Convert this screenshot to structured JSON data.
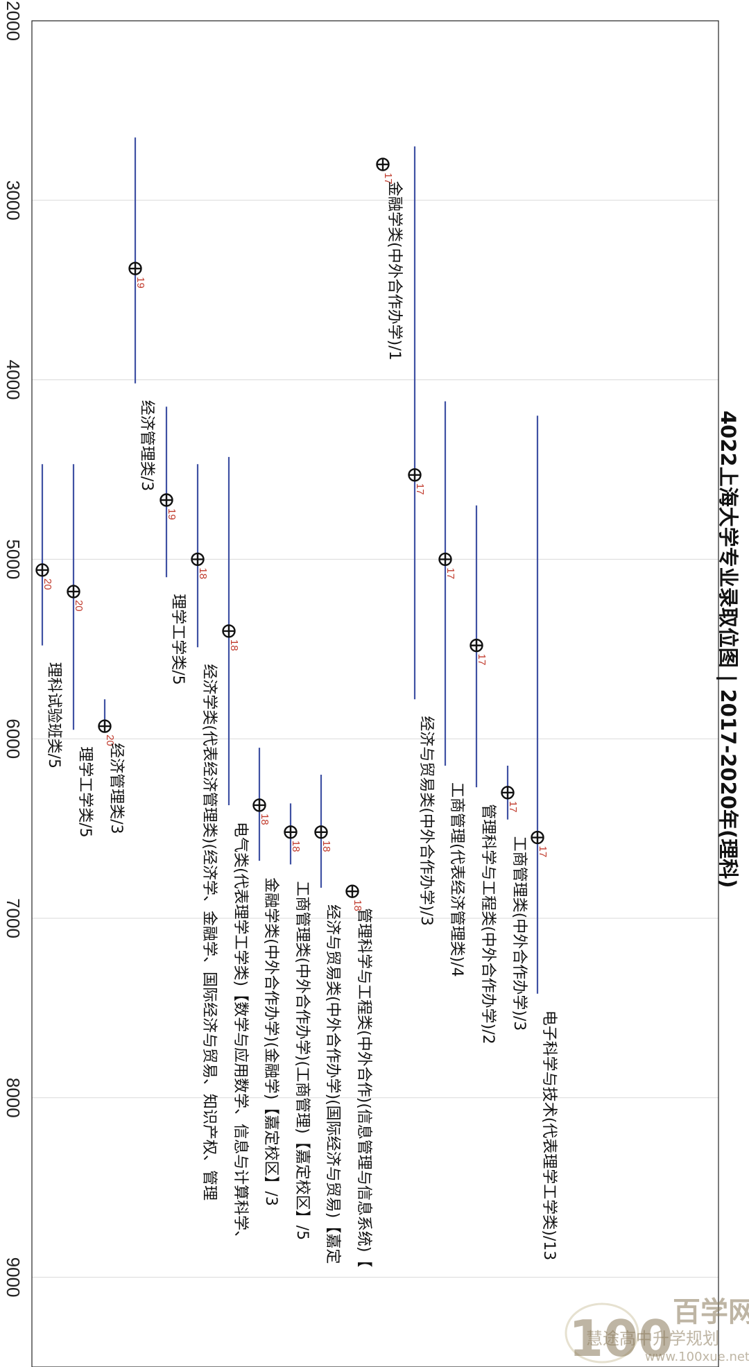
{
  "chart_data": {
    "type": "scatter",
    "title": "4022上海大学专业录取位图 | 2017-2020年(理科)",
    "xlim": [
      2000,
      9500
    ],
    "x_ticks": [
      2000,
      3000,
      4000,
      5000,
      6000,
      7000,
      8000,
      9000
    ],
    "grid": true,
    "points": [
      {
        "label": "电子科学与技术(代表理学工学类)/13",
        "min": 4200,
        "max": 7420,
        "value": 6550,
        "year": "17"
      },
      {
        "label": "工商管理类(中外合作办学)/3",
        "min": 6150,
        "max": 6450,
        "value": 6300,
        "year": "17"
      },
      {
        "label": "管理科学与工程类(中外合作办学)/2",
        "min": 4700,
        "max": 6270,
        "value": 5480,
        "year": "17"
      },
      {
        "label": "工商管理(代表经济管理类)/4",
        "min": 4120,
        "max": 6150,
        "value": 5000,
        "year": "17"
      },
      {
        "label": "经济与贸易类(中外合作办学)/3",
        "min": 2700,
        "max": 5780,
        "value": 4530,
        "year": "17"
      },
      {
        "label": "金融学类(中外合作办学)/1",
        "min": 2800,
        "max": 2800,
        "value": 2800,
        "year": "17"
      },
      {
        "label": "管理科学与工程类(中外合作)(信息管理与信息系统)【",
        "min": 6850,
        "max": 6850,
        "value": 6850,
        "year": "18"
      },
      {
        "label": "经济与贸易类(中外合作办学)(国际经济与贸易)【嘉定",
        "min": 6200,
        "max": 6830,
        "value": 6520,
        "year": "18"
      },
      {
        "label": "工商管理类(中外合作办学)(工商管理)【嘉定校区】/5",
        "min": 6360,
        "max": 6700,
        "value": 6520,
        "year": "18"
      },
      {
        "label": "金融学类(中外合作办学)(金融学)【嘉定校区】/3",
        "min": 6050,
        "max": 6680,
        "value": 6370,
        "year": "18"
      },
      {
        "label": "电气类(代表理学工学类)【数学与应用数学、信息与计算科学、",
        "min": 4430,
        "max": 6370,
        "value": 5400,
        "year": "18"
      },
      {
        "label": "经济学类(代表经济管理类)(经济学、金融学、国际经济与贸易、知识产权、管理",
        "min": 4470,
        "max": 5490,
        "value": 5000,
        "year": "18"
      },
      {
        "label": "理学工学类/5",
        "min": 4150,
        "max": 5100,
        "value": 4670,
        "year": "19"
      },
      {
        "label": "经济管理类/3",
        "min": 2650,
        "max": 4020,
        "value": 3380,
        "year": "19"
      },
      {
        "label": "经济管理类/3",
        "min": 5780,
        "max": 5930,
        "value": 5930,
        "year": "20"
      },
      {
        "label": "理学工学类/5",
        "min": 4470,
        "max": 5950,
        "value": 5180,
        "year": "20"
      },
      {
        "label": "理科试验班类/5",
        "min": 4470,
        "max": 5480,
        "value": 5060,
        "year": "20"
      }
    ]
  },
  "watermark": {
    "logo_number": "100",
    "brand": "百学网",
    "caption": "慧途高中升学规划",
    "url": "www.100xue.net"
  },
  "colors": {
    "range_line": "#3f51a3",
    "year_label": "#c0392b",
    "marker": "#111111",
    "grid": "#d9d9d9"
  }
}
